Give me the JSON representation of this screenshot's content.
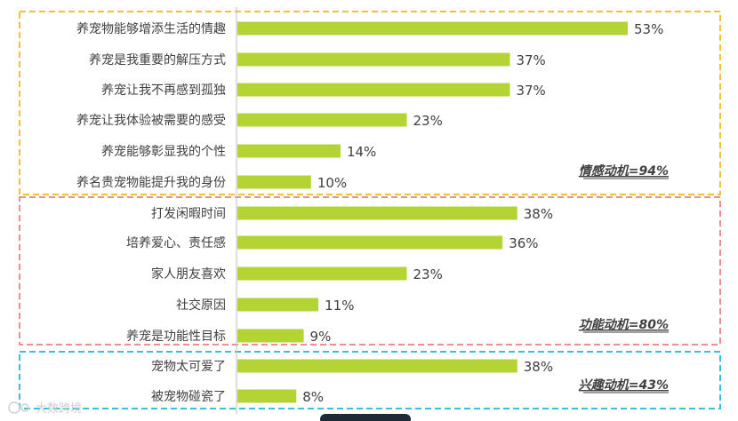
{
  "chart_data": {
    "type": "bar",
    "orientation": "horizontal",
    "unit": "%",
    "categories": [
      "养宠物能够增添生活的情趣",
      "养宠是我重要的解压方式",
      "养宠让我不再感到孤独",
      "养宠让我体验被需要的感受",
      "养宠能够彰显我的个性",
      "养名贵宠物能提升我的身份",
      "打发闲暇时间",
      "培养爱心、责任感",
      "家人朋友喜欢",
      "社交原因",
      "养宠是功能性目标",
      "宠物太可爱了",
      "被宠物碰瓷了"
    ],
    "values": [
      53,
      37,
      37,
      23,
      14,
      10,
      38,
      36,
      23,
      11,
      9,
      38,
      8
    ],
    "value_labels": [
      "53%",
      "37%",
      "37%",
      "23%",
      "14%",
      "10%",
      "38%",
      "36%",
      "23%",
      "11%",
      "9%",
      "38%",
      "8%"
    ],
    "groups": [
      {
        "label": "情感动机=94%",
        "start": 0,
        "end": 5,
        "border_color": "#f2c230"
      },
      {
        "label": "功能动机=80%",
        "start": 6,
        "end": 10,
        "border_color": "#ef8f8f"
      },
      {
        "label": "兴趣动机=43%",
        "start": 11,
        "end": 12,
        "border_color": "#3dbfe0"
      }
    ],
    "bar_color": "#b4d334",
    "xlim": [
      0,
      60
    ],
    "grid": false
  },
  "watermark": "大数跨境"
}
